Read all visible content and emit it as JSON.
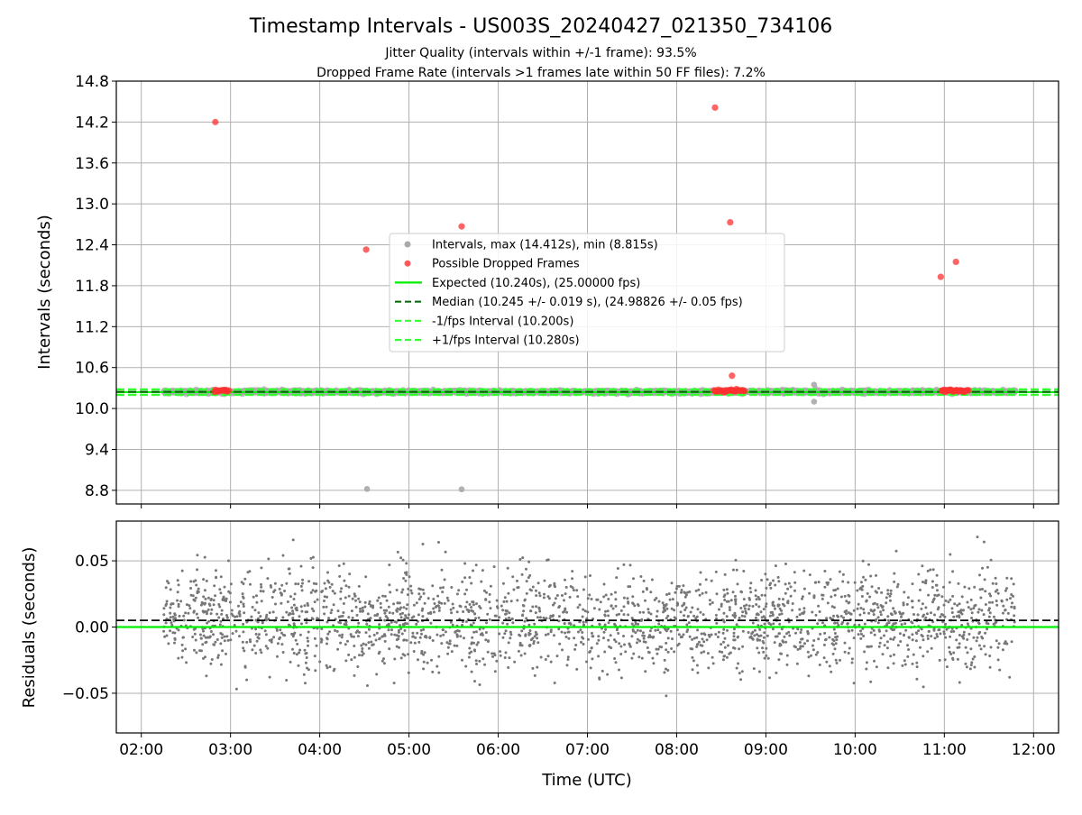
{
  "chart_data": {
    "title": "Timestamp Intervals - US003S_20240427_021350_734106",
    "subtitle_lines": [
      "Jitter Quality (intervals within +/-1 frame): 93.5%",
      "Dropped Frame Rate (intervals >1 frames late within 50 FF files): 7.2%"
    ],
    "xlabel": "Time (UTC)",
    "x_ticks": [
      "02:00",
      "03:00",
      "04:00",
      "05:00",
      "06:00",
      "07:00",
      "08:00",
      "09:00",
      "10:00",
      "11:00",
      "12:00"
    ],
    "x_range_hours": [
      1.72,
      12.28
    ],
    "panels": [
      {
        "type": "scatter",
        "ylabel": "Intervals (seconds)",
        "ylim": [
          8.6,
          14.8
        ],
        "y_ticks": [
          "8.8",
          "9.4",
          "10.0",
          "10.6",
          "11.2",
          "11.8",
          "12.4",
          "13.0",
          "13.6",
          "14.2",
          "14.8"
        ],
        "grid": true,
        "legend_position": "center",
        "legend": [
          "Intervals, max (14.412s), min (8.815s)",
          "Possible Dropped Frames",
          "Expected (10.240s), (25.00000 fps)",
          "Median (10.245 +/- 0.019 s), (24.98826 +/- 0.05 fps)",
          "-1/fps Interval (10.200s)",
          "+1/fps Interval (10.280s)"
        ],
        "reference_lines": {
          "expected": 10.24,
          "median": 10.245,
          "minus_one_frame": 10.2,
          "plus_one_frame": 10.28
        },
        "intervals_time_range_hours": [
          2.25,
          11.8
        ],
        "intervals_typical_seconds": 10.245,
        "interval_outliers": [
          {
            "t": 4.53,
            "y": 8.82
          },
          {
            "t": 5.59,
            "y": 8.815
          },
          {
            "t": 9.54,
            "y": 10.35
          },
          {
            "t": 9.54,
            "y": 10.1
          }
        ],
        "dropped_frames": [
          {
            "t": 2.83,
            "y": 14.2
          },
          {
            "t": 4.52,
            "y": 12.33
          },
          {
            "t": 5.59,
            "y": 12.67
          },
          {
            "t": 8.43,
            "y": 14.412
          },
          {
            "t": 8.6,
            "y": 12.73
          },
          {
            "t": 8.62,
            "y": 10.48
          },
          {
            "t": 10.96,
            "y": 11.93
          },
          {
            "t": 11.13,
            "y": 12.15
          }
        ],
        "dropped_frame_clusters": [
          {
            "t_start": 2.82,
            "t_end": 2.98,
            "y": 10.26
          },
          {
            "t_start": 8.42,
            "t_end": 8.76,
            "y": 10.26
          },
          {
            "t_start": 10.97,
            "t_end": 11.27,
            "y": 10.26
          }
        ],
        "colors": {
          "intervals": "#a9a9a9",
          "dropped": "#ff3030",
          "expected": "#00ee00",
          "median": "#006400",
          "bounds": "#33ff33"
        }
      },
      {
        "type": "scatter",
        "ylabel": "Residuals (seconds)",
        "ylim": [
          -0.08,
          0.08
        ],
        "y_ticks": [
          "−0.05",
          "0.00",
          "0.05"
        ],
        "y_tick_values": [
          -0.05,
          0.0,
          0.05
        ],
        "grid": true,
        "residual_std": 0.019,
        "median_offset": 0.005,
        "residuals_time_range_hours": [
          2.25,
          11.8
        ],
        "colors": {
          "points": "#777777",
          "zero_line": "#00ee00",
          "median_line": "#000000"
        }
      }
    ]
  }
}
